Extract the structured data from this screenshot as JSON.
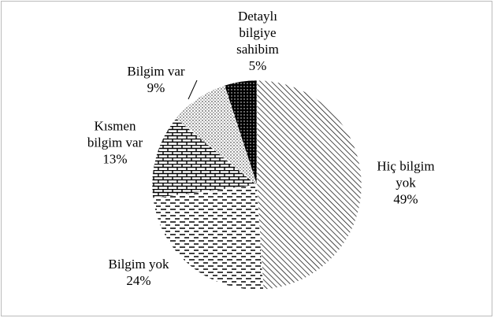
{
  "chart_data": {
    "type": "pie",
    "categories": [
      "Hiç bilgim\nyok",
      "Bilgim yok",
      "Kısmen\nbilgim var",
      "Bilgim var",
      "Detaylı\nbilgiye\nsahibim"
    ],
    "values": [
      49,
      24,
      13,
      9,
      5
    ],
    "value_labels": [
      "49%",
      "24%",
      "13%",
      "9%",
      "5%"
    ],
    "color": "#000000"
  }
}
